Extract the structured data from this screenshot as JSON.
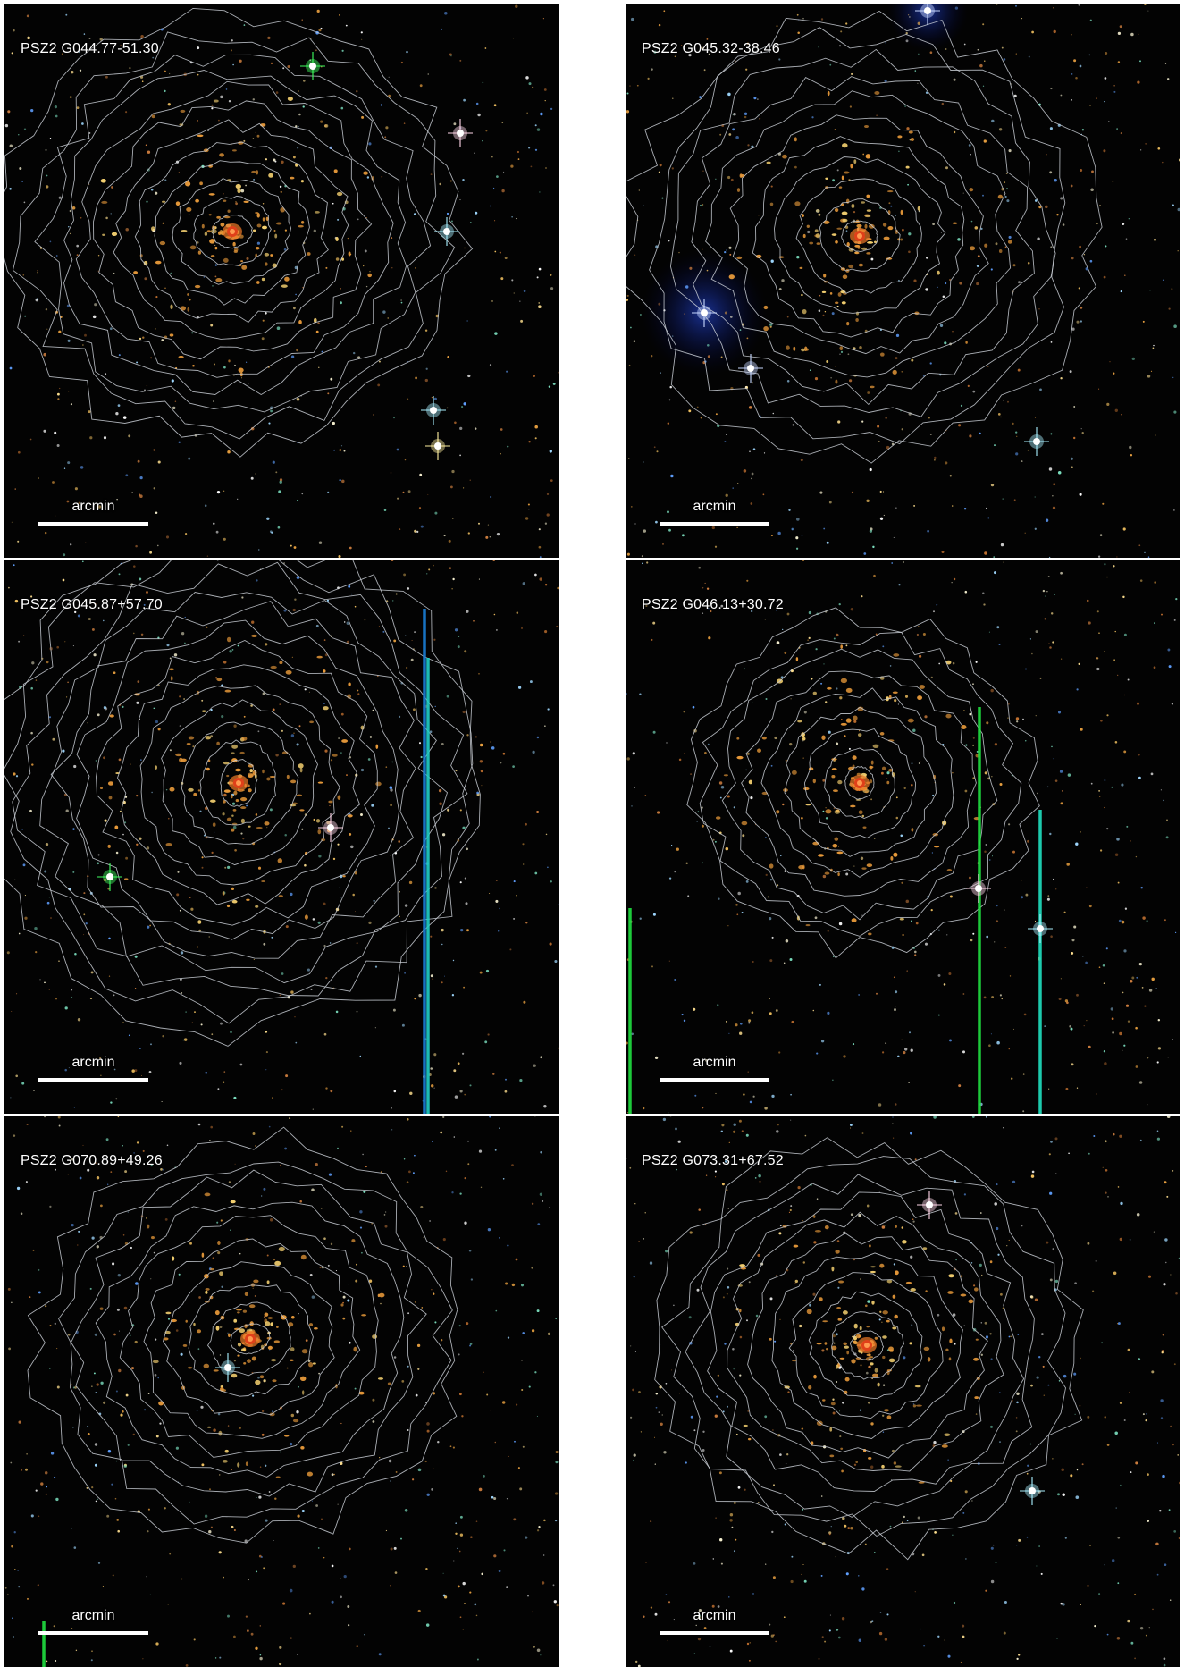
{
  "panels": [
    {
      "name": "PSZ2 G044.77-51.30",
      "scalebar_label": "arcmin"
    },
    {
      "name": "PSZ2 G045.32-38.46",
      "scalebar_label": "arcmin"
    },
    {
      "name": "PSZ2 G045.87+57.70",
      "scalebar_label": "arcmin"
    },
    {
      "name": "PSZ2 G046.13+30.72",
      "scalebar_label": "arcmin"
    },
    {
      "name": "PSZ2 G070.89+49.26",
      "scalebar_label": "arcmin"
    },
    {
      "name": "PSZ2 G073.31+67.52",
      "scalebar_label": "arcmin"
    }
  ],
  "colors": {
    "contour": "#c8ccd4",
    "sky_background": "#030303",
    "bcg_core": "#e0401a"
  }
}
